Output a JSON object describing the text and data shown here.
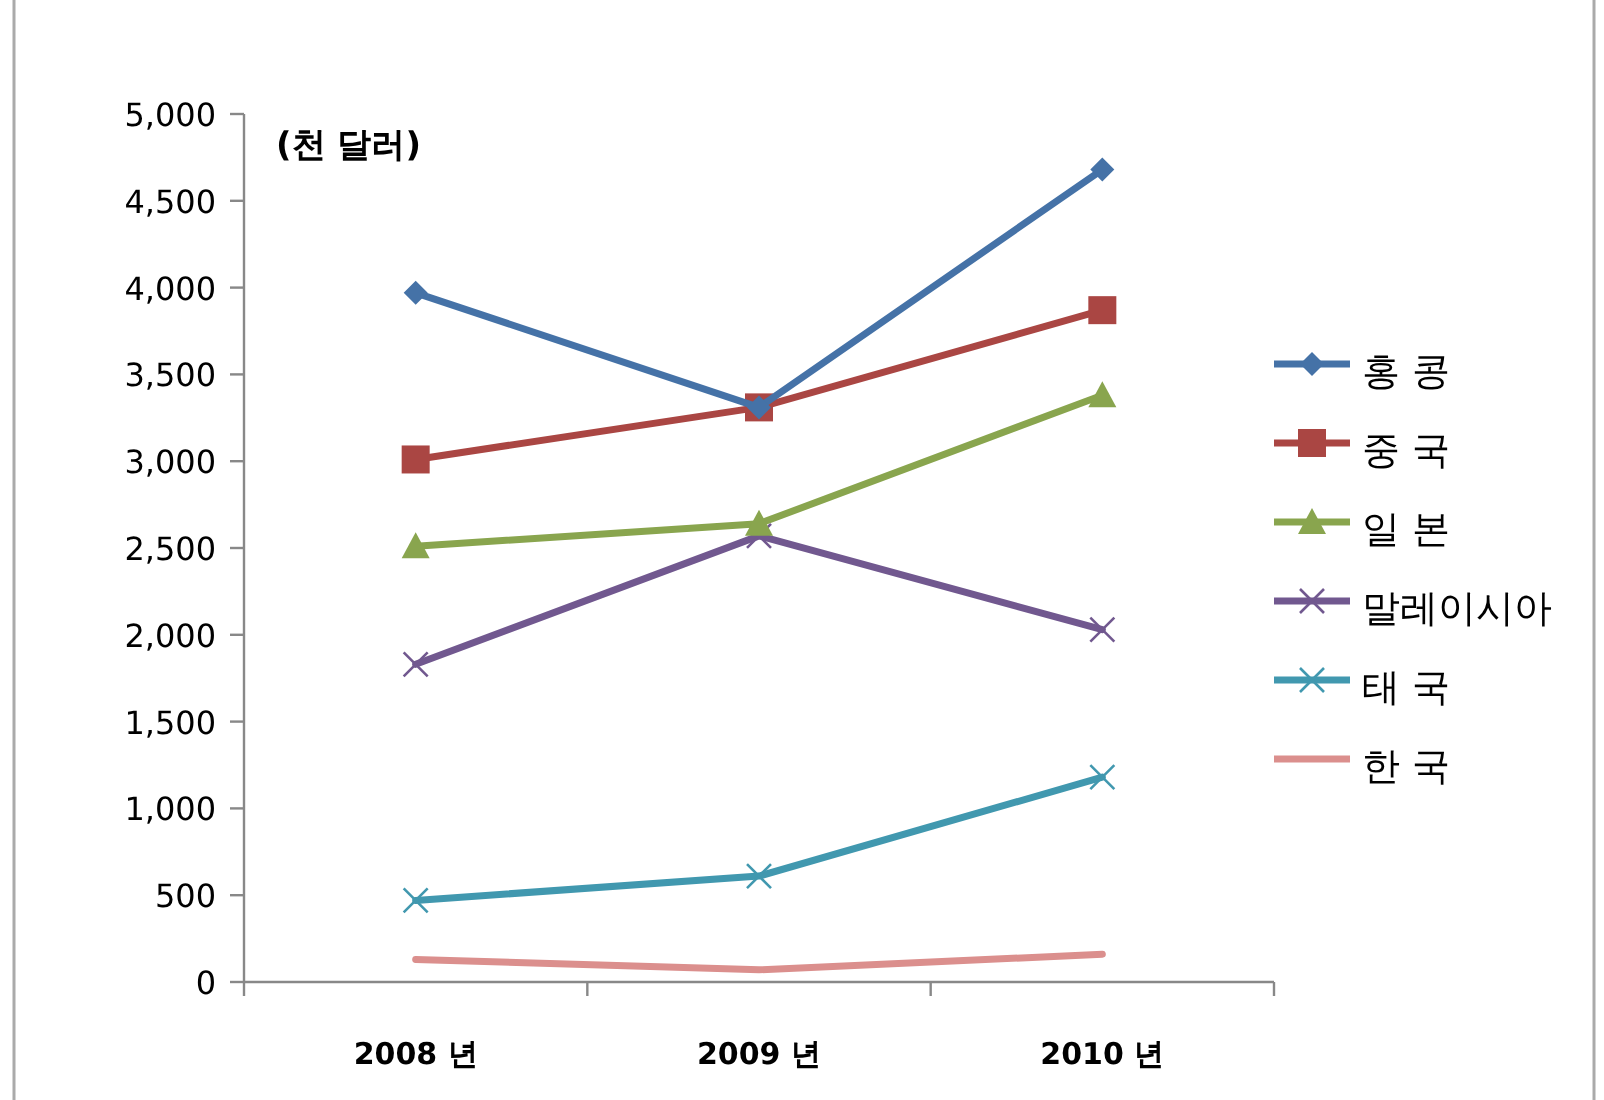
{
  "chart_data": {
    "type": "line",
    "ylabel": "(천 달러)",
    "categories": [
      "2008 년",
      "2009 년",
      "2010 년"
    ],
    "ylim": [
      0,
      5000
    ],
    "yticks": [
      {
        "value": 0,
        "label": "0"
      },
      {
        "value": 500,
        "label": "500"
      },
      {
        "value": 1000,
        "label": "1,000"
      },
      {
        "value": 1500,
        "label": "1,500"
      },
      {
        "value": 2000,
        "label": "2,000"
      },
      {
        "value": 2500,
        "label": "2,500"
      },
      {
        "value": 3000,
        "label": "3,000"
      },
      {
        "value": 3500,
        "label": "3,500"
      },
      {
        "value": 4000,
        "label": "4,000"
      },
      {
        "value": 4500,
        "label": "4,500"
      },
      {
        "value": 5000,
        "label": "5,000"
      }
    ],
    "grid": false,
    "legend": "right",
    "series": [
      {
        "name": "홍 콩",
        "color": "#4572a7",
        "marker": "diamond",
        "values": [
          3970,
          3310,
          4680
        ]
      },
      {
        "name": "중 국",
        "color": "#aa4643",
        "marker": "square",
        "values": [
          3010,
          3310,
          3870
        ]
      },
      {
        "name": "일 본",
        "color": "#89a54e",
        "marker": "triangle",
        "values": [
          2510,
          2640,
          3380
        ]
      },
      {
        "name": "말레이시아",
        "color": "#71588f",
        "marker": "cross",
        "values": [
          1830,
          2570,
          2030
        ]
      },
      {
        "name": "태 국",
        "color": "#4198af",
        "marker": "cross",
        "values": [
          470,
          610,
          1180
        ]
      },
      {
        "name": "한 국",
        "color": "#db8f8d",
        "marker": "none",
        "values": [
          130,
          70,
          160
        ]
      }
    ]
  }
}
